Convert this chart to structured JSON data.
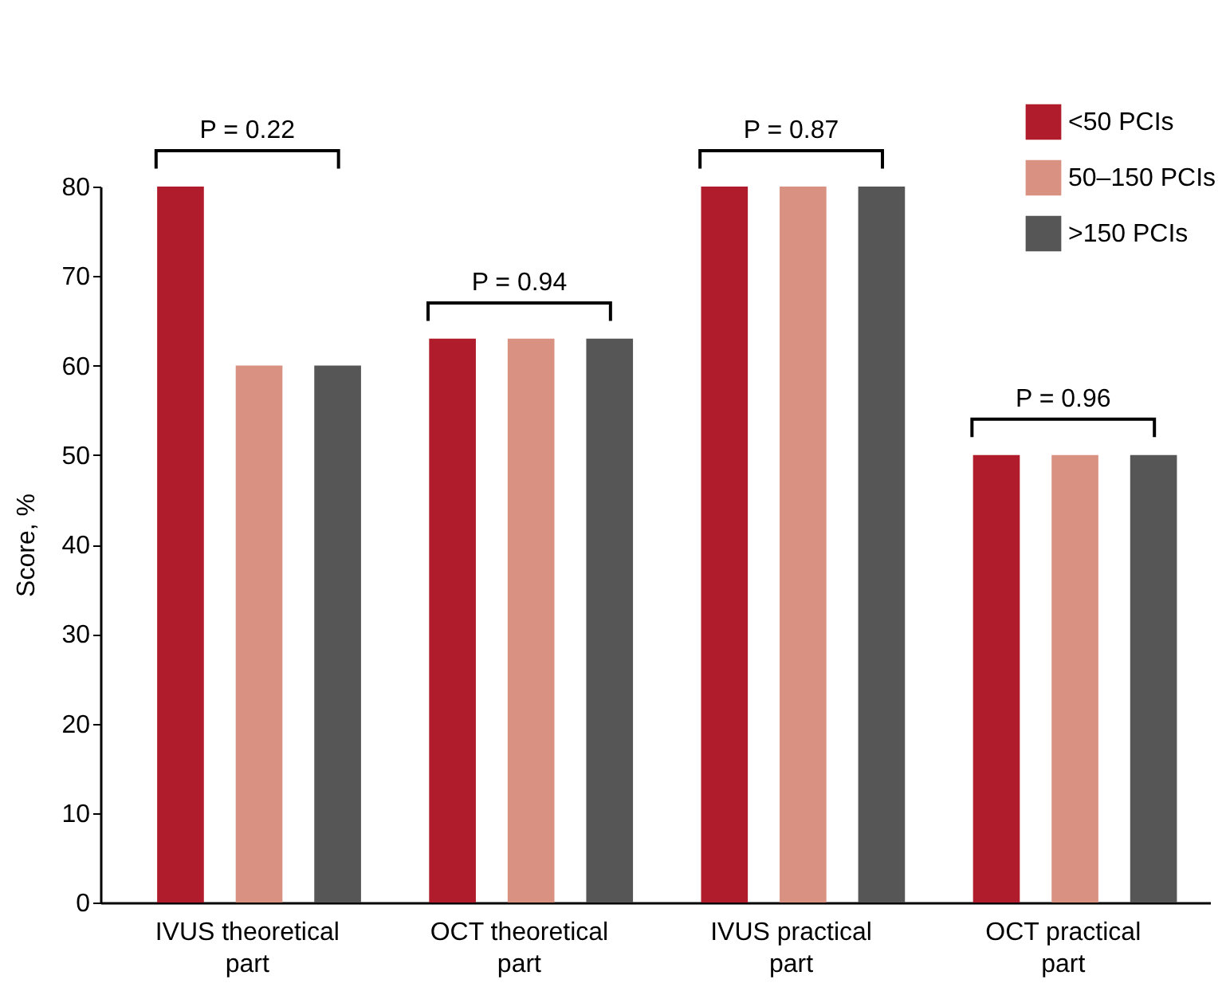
{
  "chart_data": {
    "type": "bar",
    "ylabel": "Score, %",
    "categories": [
      "IVUS theoretical part",
      "OCT theoretical part",
      "IVUS practical part",
      "OCT practical part"
    ],
    "series": [
      {
        "name": "<50 PCIs",
        "color": "#b01c2b",
        "values": [
          80,
          63,
          80,
          50
        ]
      },
      {
        "name": "50–150 PCIs",
        "color": "#d99282",
        "values": [
          60,
          63,
          80,
          50
        ]
      },
      {
        "name": ">150 PCIs",
        "color": "#565656",
        "values": [
          60,
          63,
          80,
          50
        ]
      }
    ],
    "ylim": [
      0,
      80
    ],
    "yticks": [
      0,
      10,
      20,
      30,
      40,
      50,
      60,
      70,
      80
    ],
    "grid": false,
    "legend": "top right",
    "annotations": [
      "P = 0.22",
      "P = 0.94",
      "P = 0.87",
      "P = 0.96"
    ]
  }
}
